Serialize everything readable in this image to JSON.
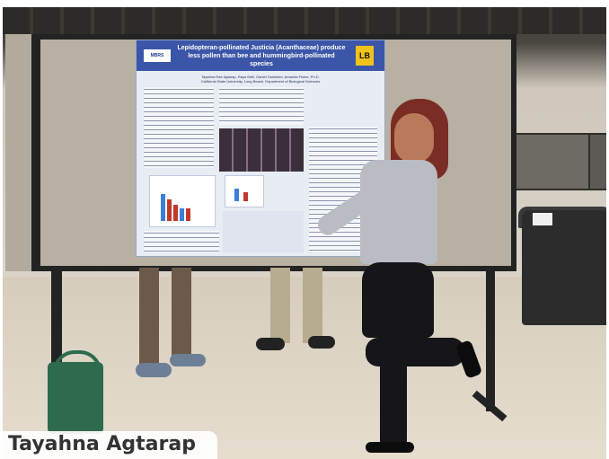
{
  "caption": {
    "name": "Tayahna Agtarap"
  },
  "poster": {
    "title": "Lepidopteran-pollinated Justicia (Acanthaceae) produce less pollen than bee and hummingbird-pollinated species",
    "authors": "Tayahna Rae Agtarap, Raya Delli, Daniel Goldstein, Amanda Fisher, Ph.D.",
    "affiliation": "California State University, Long Beach, Department of Biological Sciences",
    "logo_left": "MBRS",
    "logo_right": "LB"
  },
  "colors": {
    "poster_header": "#3b56a8",
    "board_frame": "#232323",
    "caption_text": "#333333"
  }
}
